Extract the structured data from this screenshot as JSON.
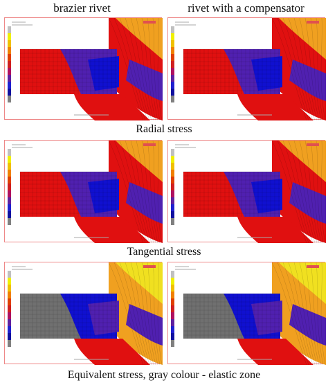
{
  "columns": [
    "brazier rivet",
    "rivet with a compensator"
  ],
  "rows": [
    {
      "caption": "Radial stress"
    },
    {
      "caption": "Tangential stress"
    },
    {
      "caption": "Equivalent stress, gray colour - elastic zone"
    }
  ],
  "colors": {
    "high": "#e01010",
    "mid": "#5020b0",
    "low": "#1010d0",
    "warm": "#f0a020",
    "yellow": "#f0e020",
    "elastic": "#707070",
    "frame": "#e88888"
  },
  "legend_colors": [
    "#c0c0c0",
    "#f0f000",
    "#f0c000",
    "#f08000",
    "#e04000",
    "#d02020",
    "#b01060",
    "#6020a0",
    "#2020d0",
    "#1010a0",
    "#808080"
  ]
}
